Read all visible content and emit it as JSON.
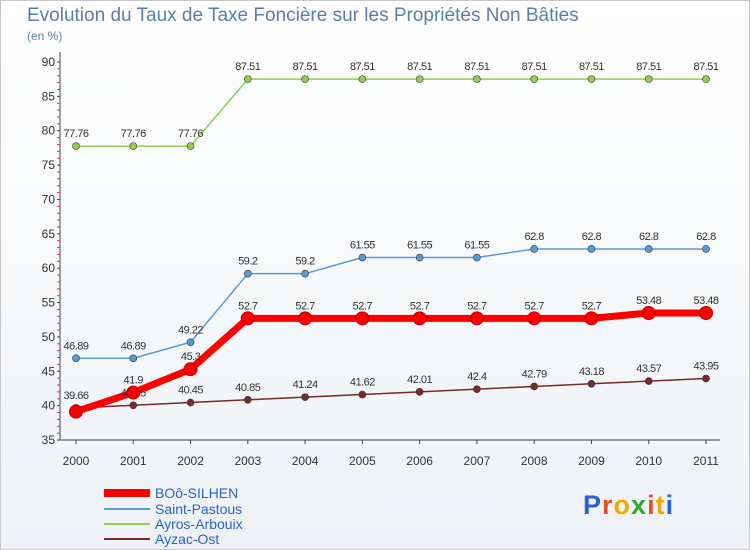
{
  "chart_data": {
    "type": "line",
    "title": "Evolution du Taux de Taxe Foncière sur les Propriétés Non Bâties",
    "ylabel": "(en %)",
    "xlabel": "",
    "ylim": [
      35,
      90
    ],
    "yticks": [
      35,
      40,
      45,
      50,
      55,
      60,
      65,
      70,
      75,
      80,
      85,
      90
    ],
    "categories": [
      "2000",
      "2001",
      "2002",
      "2003",
      "2004",
      "2005",
      "2006",
      "2007",
      "2008",
      "2009",
      "2010",
      "2011"
    ],
    "series": [
      {
        "name": "BOô-SILHEN",
        "color": "#ff0000",
        "values": [
          39.13,
          41.9,
          45.3,
          52.7,
          52.7,
          52.7,
          52.7,
          52.7,
          52.7,
          52.7,
          53.48,
          53.48
        ],
        "labels": [
          "",
          "41.9",
          "45.3",
          "52.7",
          "52.7",
          "52.7",
          "52.7",
          "52.7",
          "52.7",
          "52.7",
          "53.48",
          "53.48"
        ]
      },
      {
        "name": "Saint-Pastous",
        "color": "#5b9bd5",
        "values": [
          46.89,
          46.89,
          49.22,
          59.2,
          59.2,
          61.55,
          61.55,
          61.55,
          62.8,
          62.8,
          62.8,
          62.8
        ],
        "labels": [
          "46.89",
          "46.89",
          "49.22",
          "59.2",
          "59.2",
          "61.55",
          "61.55",
          "61.55",
          "62.8",
          "62.8",
          "62.8",
          "62.8"
        ]
      },
      {
        "name": "Ayros-Arbouix",
        "color": "#8ed14f",
        "values": [
          77.76,
          77.76,
          77.76,
          87.51,
          87.51,
          87.51,
          87.51,
          87.51,
          87.51,
          87.51,
          87.51,
          87.51
        ],
        "labels": [
          "77.76",
          "77.76",
          "77.76",
          "87.51",
          "87.51",
          "87.51",
          "87.51",
          "87.51",
          "87.51",
          "87.51",
          "87.51",
          "87.51"
        ]
      },
      {
        "name": "Ayzac-Ost",
        "color": "#7a2a2a",
        "values": [
          39.66,
          40.05,
          40.45,
          40.85,
          41.24,
          41.62,
          42.01,
          42.4,
          42.79,
          43.18,
          43.57,
          43.95
        ],
        "labels": [
          "39.66",
          "40.05",
          "40.45",
          "40.85",
          "41.24",
          "41.62",
          "42.01",
          "42.4",
          "42.79",
          "43.18",
          "43.57",
          "43.95"
        ]
      }
    ],
    "legend_position": "bottom-left"
  },
  "logo": {
    "text": "Proxiti"
  }
}
